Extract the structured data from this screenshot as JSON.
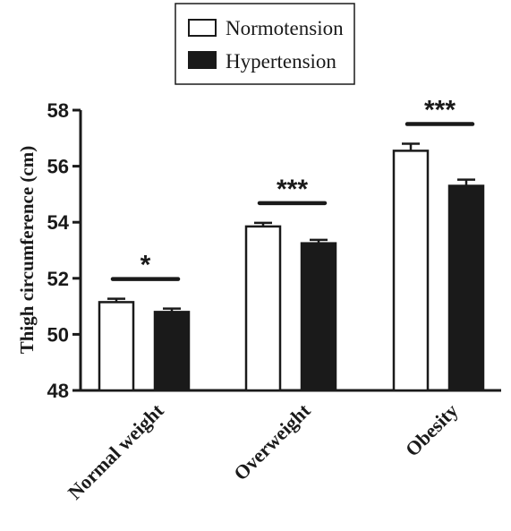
{
  "chart_data": {
    "type": "bar",
    "categories": [
      "Normal weight",
      "Overweight",
      "Obesity"
    ],
    "series": [
      {
        "name": "Normotension",
        "values": [
          51.15,
          53.85,
          56.55
        ],
        "errors": [
          0.12,
          0.13,
          0.25
        ],
        "fill": "#ffffff",
        "stroke": "#1a1a1a"
      },
      {
        "name": "Hypertension",
        "values": [
          50.8,
          53.25,
          55.3
        ],
        "errors": [
          0.12,
          0.12,
          0.22
        ],
        "fill": "#1a1a1a",
        "stroke": "#1a1a1a"
      }
    ],
    "significance": [
      "*",
      "***",
      "***"
    ],
    "ylabel": "Thigh circumference (cm)",
    "xlabel": "",
    "ylim": [
      48,
      58
    ],
    "yticks": [
      "48",
      "50",
      "52",
      "54",
      "56",
      "58"
    ],
    "grid": false,
    "legend_position": "top-center"
  }
}
